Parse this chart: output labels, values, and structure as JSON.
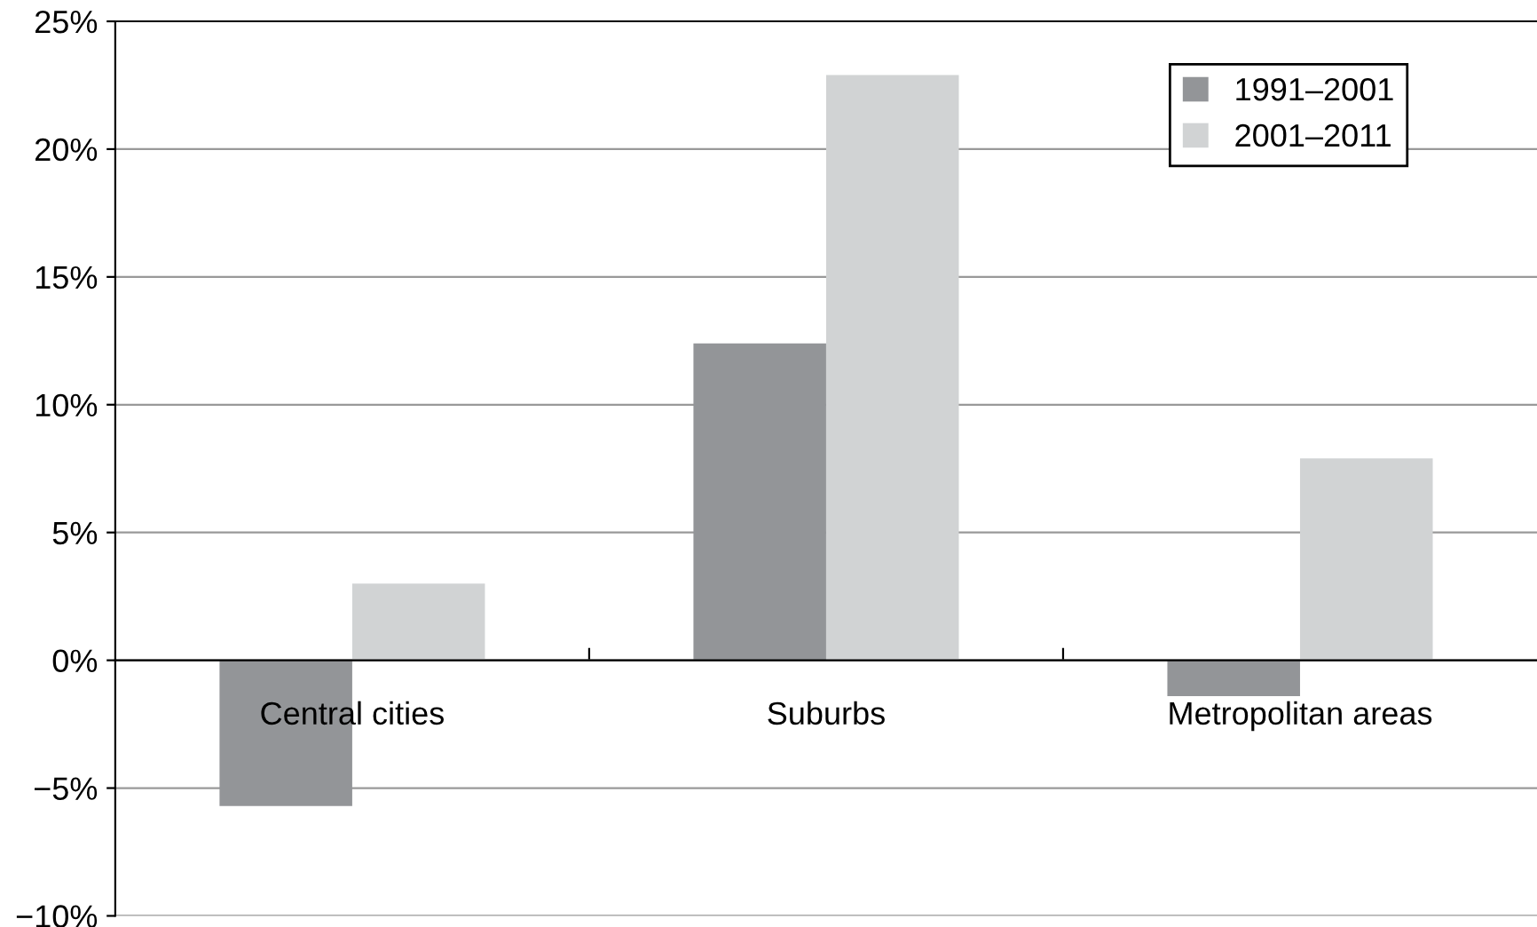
{
  "chart_data": {
    "type": "bar",
    "categories": [
      "Central cities",
      "Suburbs",
      "Metropolitan areas"
    ],
    "series": [
      {
        "name": "1991–2001",
        "color": "#939598",
        "values": [
          -5.7,
          12.4,
          -1.4
        ]
      },
      {
        "name": "2001–2011",
        "color": "#d1d3d4",
        "values": [
          3.0,
          22.9,
          7.9
        ]
      }
    ],
    "ylim": [
      -10,
      25
    ],
    "yticks": [
      {
        "value": -10,
        "label": "−10%"
      },
      {
        "value": -5,
        "label": "−5%"
      },
      {
        "value": 0,
        "label": "0%"
      },
      {
        "value": 5,
        "label": "5%"
      },
      {
        "value": 10,
        "label": "10%"
      },
      {
        "value": 15,
        "label": "15%"
      },
      {
        "value": 20,
        "label": "20%"
      },
      {
        "value": 25,
        "label": "25%"
      }
    ],
    "grid": "y",
    "legend": "top right"
  }
}
